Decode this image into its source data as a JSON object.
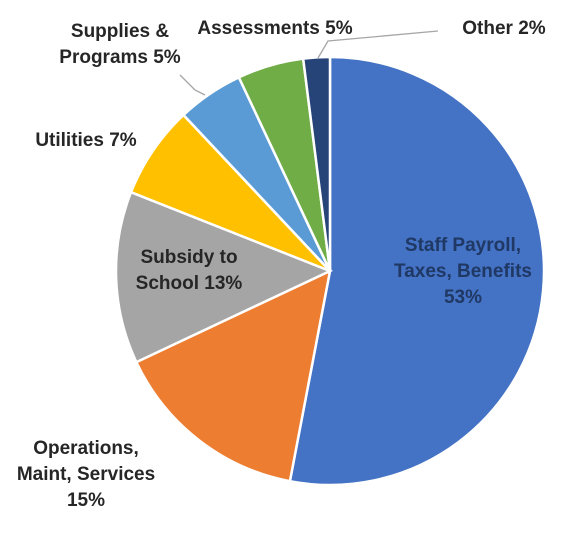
{
  "chart_data": {
    "type": "pie",
    "title": "",
    "slices": [
      {
        "key": "payroll",
        "label_lines": [
          "Staff Payroll,",
          "Taxes, Benefits",
          "53%"
        ],
        "value": 53,
        "color": "#4472c4",
        "text_color": "#1f3864"
      },
      {
        "key": "operations",
        "label_lines": [
          "Operations,",
          "Maint, Services",
          "15%"
        ],
        "value": 15,
        "color": "#ed7d31",
        "text_color": "#262626"
      },
      {
        "key": "subsidy",
        "label_lines": [
          "Subsidy to",
          "School  13%"
        ],
        "value": 13,
        "color": "#a5a5a5",
        "text_color": "#262626"
      },
      {
        "key": "utilities",
        "label_lines": [
          "Utilities  7%"
        ],
        "value": 7,
        "color": "#ffc000",
        "text_color": "#262626"
      },
      {
        "key": "supplies",
        "label_lines": [
          "Supplies &",
          "Programs  5%"
        ],
        "value": 5,
        "color": "#5b9bd5",
        "text_color": "#262626"
      },
      {
        "key": "assessments",
        "label_lines": [
          "Assessments  5%"
        ],
        "value": 5,
        "color": "#70ad47",
        "text_color": "#262626"
      },
      {
        "key": "other",
        "label_lines": [
          "Other  2%"
        ],
        "value": 2,
        "color": "#264478",
        "text_color": "#262626"
      }
    ]
  }
}
